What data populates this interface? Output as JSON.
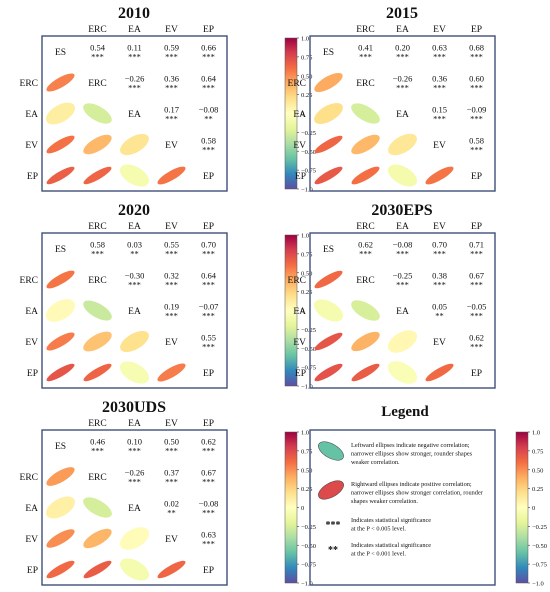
{
  "variables": [
    "ES",
    "ERC",
    "EA",
    "EV",
    "EP"
  ],
  "colorbar": {
    "ticks": [
      "1.0",
      "0.75",
      "0.50",
      "0.25",
      "0",
      "−0.25",
      "−0.50",
      "−0.75",
      "−1.0"
    ],
    "colors": [
      "#9e0142",
      "#d53e4f",
      "#f46d43",
      "#fdae61",
      "#fee08b",
      "#ffffbf",
      "#e6f598",
      "#abdda4",
      "#66c2a5",
      "#3288bd",
      "#5e4fa2"
    ]
  },
  "chart_data": [
    {
      "type": "heatmap",
      "title": "2010",
      "variables": [
        "ES",
        "ERC",
        "EA",
        "EV",
        "EP"
      ],
      "correlations": [
        {
          "row": "ES",
          "col": "ERC",
          "value": 0.54,
          "sig": "***"
        },
        {
          "row": "ES",
          "col": "EA",
          "value": 0.11,
          "sig": "***"
        },
        {
          "row": "ES",
          "col": "EV",
          "value": 0.59,
          "sig": "***"
        },
        {
          "row": "ES",
          "col": "EP",
          "value": 0.66,
          "sig": "***"
        },
        {
          "row": "ERC",
          "col": "EA",
          "value": -0.26,
          "sig": "***"
        },
        {
          "row": "ERC",
          "col": "EV",
          "value": 0.36,
          "sig": "***"
        },
        {
          "row": "ERC",
          "col": "EP",
          "value": 0.64,
          "sig": "***"
        },
        {
          "row": "EA",
          "col": "EV",
          "value": 0.17,
          "sig": "***"
        },
        {
          "row": "EA",
          "col": "EP",
          "value": -0.08,
          "sig": "**"
        },
        {
          "row": "EV",
          "col": "EP",
          "value": 0.58,
          "sig": "***"
        }
      ]
    },
    {
      "type": "heatmap",
      "title": "2015",
      "variables": [
        "ES",
        "ERC",
        "EA",
        "EV",
        "EP"
      ],
      "correlations": [
        {
          "row": "ES",
          "col": "ERC",
          "value": 0.41,
          "sig": "***"
        },
        {
          "row": "ES",
          "col": "EA",
          "value": 0.2,
          "sig": "***"
        },
        {
          "row": "ES",
          "col": "EV",
          "value": 0.63,
          "sig": "***"
        },
        {
          "row": "ES",
          "col": "EP",
          "value": 0.68,
          "sig": "***"
        },
        {
          "row": "ERC",
          "col": "EA",
          "value": -0.26,
          "sig": "***"
        },
        {
          "row": "ERC",
          "col": "EV",
          "value": 0.36,
          "sig": "***"
        },
        {
          "row": "ERC",
          "col": "EP",
          "value": 0.6,
          "sig": "***"
        },
        {
          "row": "EA",
          "col": "EV",
          "value": 0.15,
          "sig": "***"
        },
        {
          "row": "EA",
          "col": "EP",
          "value": -0.09,
          "sig": "***"
        },
        {
          "row": "EV",
          "col": "EP",
          "value": 0.58,
          "sig": "***"
        }
      ]
    },
    {
      "type": "heatmap",
      "title": "2020",
      "variables": [
        "ES",
        "ERC",
        "EA",
        "EV",
        "EP"
      ],
      "correlations": [
        {
          "row": "ES",
          "col": "ERC",
          "value": 0.58,
          "sig": "***"
        },
        {
          "row": "ES",
          "col": "EA",
          "value": 0.03,
          "sig": "**"
        },
        {
          "row": "ES",
          "col": "EV",
          "value": 0.55,
          "sig": "***"
        },
        {
          "row": "ES",
          "col": "EP",
          "value": 0.7,
          "sig": "***"
        },
        {
          "row": "ERC",
          "col": "EA",
          "value": -0.3,
          "sig": "***"
        },
        {
          "row": "ERC",
          "col": "EV",
          "value": 0.32,
          "sig": "***"
        },
        {
          "row": "ERC",
          "col": "EP",
          "value": 0.64,
          "sig": "***"
        },
        {
          "row": "EA",
          "col": "EV",
          "value": 0.19,
          "sig": "***"
        },
        {
          "row": "EA",
          "col": "EP",
          "value": -0.07,
          "sig": "***"
        },
        {
          "row": "EV",
          "col": "EP",
          "value": 0.55,
          "sig": "***"
        }
      ]
    },
    {
      "type": "heatmap",
      "title": "2030EPS",
      "variables": [
        "ES",
        "ERC",
        "EA",
        "EV",
        "EP"
      ],
      "correlations": [
        {
          "row": "ES",
          "col": "ERC",
          "value": 0.62,
          "sig": "***"
        },
        {
          "row": "ES",
          "col": "EA",
          "value": -0.08,
          "sig": "***"
        },
        {
          "row": "ES",
          "col": "EV",
          "value": 0.7,
          "sig": "***"
        },
        {
          "row": "ES",
          "col": "EP",
          "value": 0.71,
          "sig": "***"
        },
        {
          "row": "ERC",
          "col": "EA",
          "value": -0.25,
          "sig": "***"
        },
        {
          "row": "ERC",
          "col": "EV",
          "value": 0.38,
          "sig": "***"
        },
        {
          "row": "ERC",
          "col": "EP",
          "value": 0.67,
          "sig": "***"
        },
        {
          "row": "EA",
          "col": "EV",
          "value": 0.05,
          "sig": "**"
        },
        {
          "row": "EA",
          "col": "EP",
          "value": -0.05,
          "sig": "***"
        },
        {
          "row": "EV",
          "col": "EP",
          "value": 0.62,
          "sig": "***"
        }
      ]
    },
    {
      "type": "heatmap",
      "title": "2030UDS",
      "variables": [
        "ES",
        "ERC",
        "EA",
        "EV",
        "EP"
      ],
      "correlations": [
        {
          "row": "ES",
          "col": "ERC",
          "value": 0.46,
          "sig": "***"
        },
        {
          "row": "ES",
          "col": "EA",
          "value": 0.1,
          "sig": "***"
        },
        {
          "row": "ES",
          "col": "EV",
          "value": 0.5,
          "sig": "***"
        },
        {
          "row": "ES",
          "col": "EP",
          "value": 0.62,
          "sig": "***"
        },
        {
          "row": "ERC",
          "col": "EA",
          "value": -0.26,
          "sig": "***"
        },
        {
          "row": "ERC",
          "col": "EV",
          "value": 0.37,
          "sig": "***"
        },
        {
          "row": "ERC",
          "col": "EP",
          "value": 0.67,
          "sig": "***"
        },
        {
          "row": "EA",
          "col": "EV",
          "value": 0.02,
          "sig": "**"
        },
        {
          "row": "EA",
          "col": "EP",
          "value": -0.08,
          "sig": "***"
        },
        {
          "row": "EV",
          "col": "EP",
          "value": 0.63,
          "sig": "***"
        }
      ]
    }
  ],
  "legend": {
    "title": "Legend",
    "items": [
      {
        "symbol": "ellipse",
        "direction": "left",
        "value": -0.6,
        "lines": [
          "Leftward ellipses indicate negative correlation;",
          "narrower ellipses show stronger, rounder shapes",
          "weaker correlation."
        ]
      },
      {
        "symbol": "ellipse",
        "direction": "right",
        "value": 0.75,
        "lines": [
          "Rightward ellipses indicate positive correlation;",
          "narrower ellipses show stronger correlation, rounder",
          "shapes weaker correlation."
        ]
      },
      {
        "symbol": "***",
        "lines": [
          "Indicates statistical significance",
          "at the P < 0.005 level."
        ]
      },
      {
        "symbol": "**",
        "lines": [
          "Indicates statistical significance",
          "at the P < 0.001 level."
        ]
      }
    ]
  }
}
